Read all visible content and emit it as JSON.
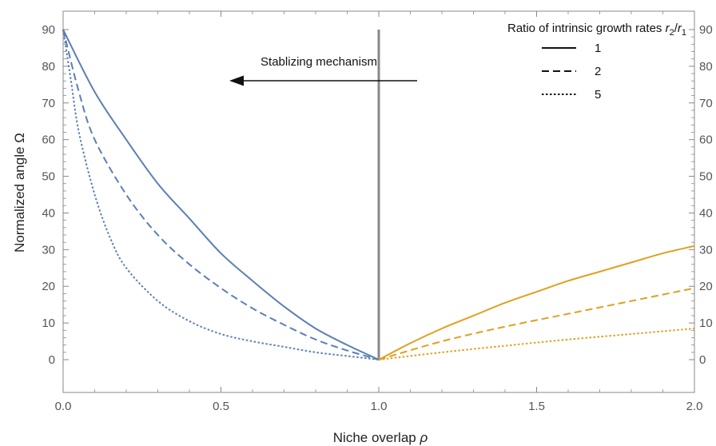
{
  "chart_data": {
    "type": "line",
    "xlabel": "Niche overlap",
    "xlabel_symbol": "ρ",
    "ylabel": "Normalized angle Ω",
    "xlim": [
      0,
      2
    ],
    "ylim": [
      0,
      90
    ],
    "x_ticks": [
      "0.0",
      "0.5",
      "1.0",
      "1.5",
      "2.0"
    ],
    "y_ticks": [
      "0",
      "10",
      "20",
      "30",
      "40",
      "50",
      "60",
      "70",
      "80",
      "90"
    ],
    "grid": false,
    "legend": {
      "title_prefix": "Ratio of intrinsic growth rates ",
      "title_var1": "r",
      "title_sub1": "2",
      "title_slash": "/",
      "title_var2": "r",
      "title_sub2": "1",
      "placement": "top-right",
      "entries": [
        {
          "label": "1",
          "dash": "solid"
        },
        {
          "label": "2",
          "dash": "dashed"
        },
        {
          "label": "5",
          "dash": "dotted"
        }
      ]
    },
    "annotation": {
      "text": "Stablizing mechanism",
      "arrow_direction": "left"
    },
    "reference_line_x": 1.0,
    "colors": {
      "left": "#5b7fb5",
      "right": "#e0a020",
      "reference": "#888888"
    },
    "series": [
      {
        "ratio": 1,
        "dash": "solid",
        "color": "#5b7fb5",
        "x": [
          0.0,
          0.1,
          0.2,
          0.3,
          0.4,
          0.5,
          0.6,
          0.7,
          0.8,
          0.9,
          1.0
        ],
        "y": [
          90,
          73,
          60,
          48,
          38.5,
          29,
          21.5,
          14.5,
          8.5,
          4,
          0
        ]
      },
      {
        "ratio": 2,
        "dash": "dashed",
        "color": "#5b7fb5",
        "x": [
          0.0,
          0.05,
          0.1,
          0.2,
          0.3,
          0.4,
          0.5,
          0.6,
          0.7,
          0.8,
          0.9,
          1.0
        ],
        "y": [
          90,
          73,
          60,
          45,
          34,
          26,
          19.5,
          14,
          9.5,
          5.5,
          2.5,
          0
        ]
      },
      {
        "ratio": 5,
        "dash": "dotted",
        "color": "#5b7fb5",
        "x": [
          0.0,
          0.025,
          0.05,
          0.1,
          0.15,
          0.2,
          0.3,
          0.4,
          0.5,
          0.6,
          0.7,
          0.8,
          0.9,
          1.0
        ],
        "y": [
          90,
          76,
          62,
          45,
          33,
          25,
          16,
          10.5,
          7,
          5,
          3.5,
          2,
          1,
          0
        ]
      },
      {
        "ratio": 1,
        "dash": "solid",
        "color": "#e0a020",
        "x": [
          1.0,
          1.1,
          1.2,
          1.3,
          1.4,
          1.5,
          1.6,
          1.7,
          1.8,
          1.9,
          2.0
        ],
        "y": [
          0,
          4.5,
          8.5,
          12,
          15.5,
          18.5,
          21.5,
          24,
          26.5,
          29,
          31
        ]
      },
      {
        "ratio": 2,
        "dash": "dashed",
        "color": "#e0a020",
        "x": [
          1.0,
          1.2,
          1.4,
          1.6,
          1.8,
          2.0
        ],
        "y": [
          0,
          5,
          9,
          12.5,
          16,
          19.5
        ]
      },
      {
        "ratio": 5,
        "dash": "dotted",
        "color": "#e0a020",
        "x": [
          1.0,
          1.2,
          1.4,
          1.6,
          1.8,
          2.0
        ],
        "y": [
          0,
          2,
          3.8,
          5.5,
          7,
          8.5
        ]
      }
    ]
  }
}
